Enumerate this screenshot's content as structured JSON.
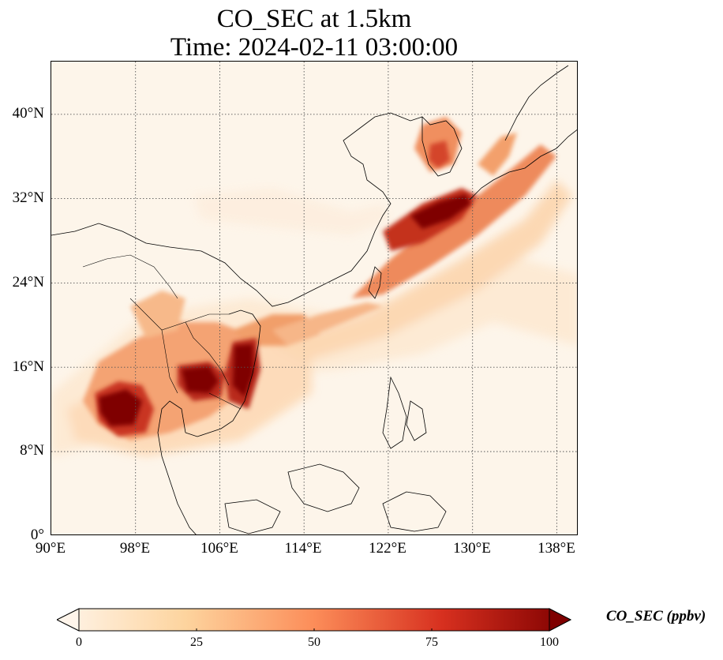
{
  "title": {
    "line1": "CO_SEC at 1.5km",
    "line2": "Time: 2024-02-11 03:00:00"
  },
  "map": {
    "latitude_labels": [
      "40°N",
      "32°N",
      "24°N",
      "16°N",
      "8°N",
      "0°"
    ],
    "longitude_labels": [
      "90°E",
      "98°E",
      "106°E",
      "114°E",
      "122°E",
      "130°E",
      "138°E"
    ],
    "gridlines": "dotted",
    "variable": "CO_SEC",
    "colormap": [
      "#fff5eb",
      "#fdd49e",
      "#fc8d59",
      "#d7301f",
      "#7f0000"
    ]
  },
  "colorbar": {
    "label": "CO_SEC (ppbv)",
    "ticks": [
      "0",
      "25",
      "50",
      "75",
      "100"
    ],
    "min": 0,
    "max": 100,
    "extend": "both"
  }
}
